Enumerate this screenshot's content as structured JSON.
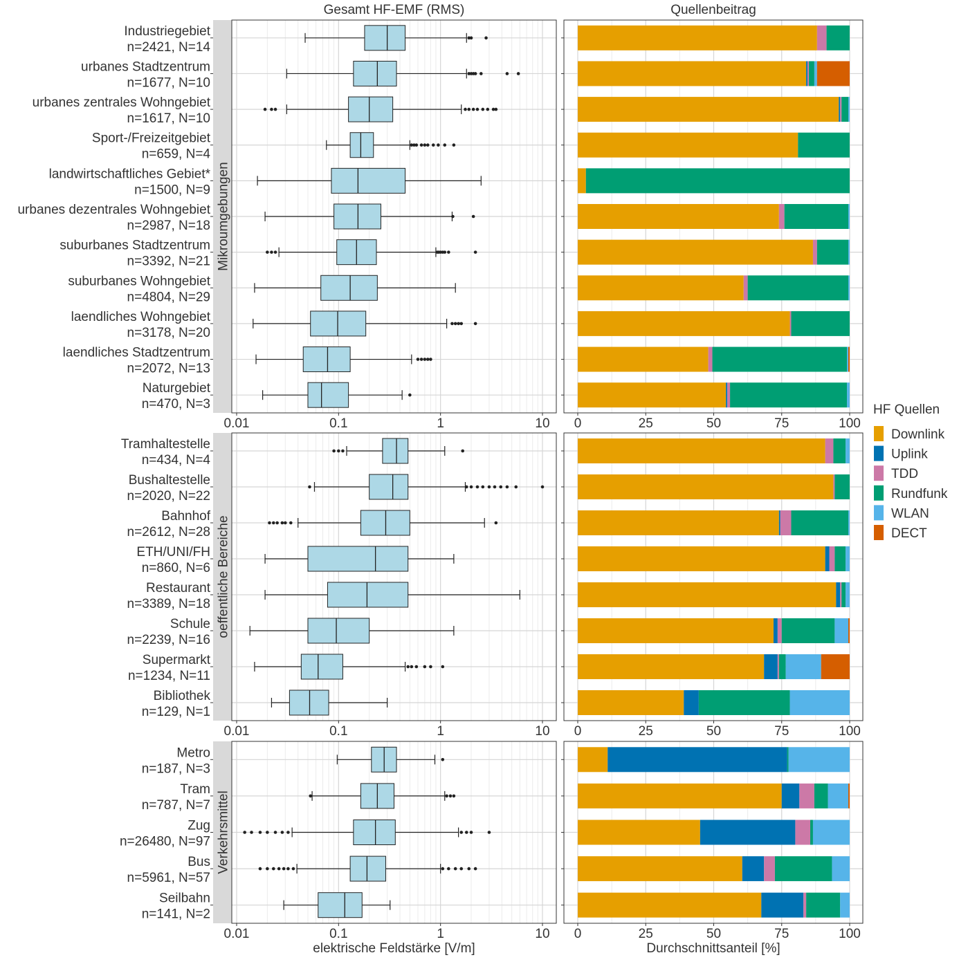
{
  "chart_data": {
    "type": "boxplot+stacked-bar",
    "left_title": "Gesamt HF-EMF (RMS)",
    "right_title": "Quellenbeitrag",
    "left_xlabel": "elektrische Feldstärke [V/m]",
    "right_xlabel": "Durchschnittsanteil [%]",
    "left_scale": "log10",
    "left_xlim": [
      0.01,
      12
    ],
    "left_ticks": [
      "0.01",
      "0.1",
      "1",
      "10"
    ],
    "right_xlim": [
      0,
      100
    ],
    "right_ticks": [
      "0",
      "25",
      "50",
      "75",
      "100"
    ],
    "grid": true,
    "legend": {
      "title": "HF Quellen",
      "placement": "right",
      "items": [
        {
          "name": "Downlink",
          "color": "#E69F00"
        },
        {
          "name": "Uplink",
          "color": "#0072B2"
        },
        {
          "name": "TDD",
          "color": "#CC79A7"
        },
        {
          "name": "Rundfunk",
          "color": "#009E73"
        },
        {
          "name": "WLAN",
          "color": "#56B4E9"
        },
        {
          "name": "DECT",
          "color": "#D55E00"
        }
      ]
    },
    "box_fill": "#ADD8E6",
    "panels": [
      {
        "strip": "Mikroumgebungen",
        "rows": [
          {
            "name": "Industriegebiet",
            "n": "n=2421, N=14",
            "box": {
              "lw": 0.047,
              "q1": 0.18,
              "med": 0.3,
              "q3": 0.45,
              "uw": 1.8
            },
            "outliers": [
              1.9,
              2.0,
              2.8
            ],
            "shares": [
              88,
              0,
              3.5,
              8.5,
              0,
              0
            ]
          },
          {
            "name": "urbanes Stadtzentrum",
            "n": "n=1677, N=10",
            "box": {
              "lw": 0.031,
              "q1": 0.14,
              "med": 0.24,
              "q3": 0.37,
              "uw": 1.8
            },
            "outliers": [
              1.9,
              2.0,
              2.1,
              2.2,
              2.5,
              4.5,
              5.8
            ],
            "shares": [
              84,
              0.5,
              0.5,
              2,
              1,
              12
            ]
          },
          {
            "name": "urbanes zentrales Wohngebiet",
            "n": "n=1617, N=10",
            "box": {
              "lw": 0.031,
              "q1": 0.125,
              "med": 0.2,
              "q3": 0.34,
              "uw": 1.6
            },
            "outliers": [
              0.019,
              0.022,
              0.024,
              1.75,
              1.9,
              2.1,
              2.3,
              2.6,
              2.9,
              3.3,
              3.5
            ],
            "shares": [
              96,
              0.5,
              0.5,
              2.5,
              0.5,
              0
            ]
          },
          {
            "name": "Sport-/Freizeitgebiet",
            "n": "n=659, N=4",
            "box": {
              "lw": 0.076,
              "q1": 0.13,
              "med": 0.165,
              "q3": 0.22,
              "uw": 0.5
            },
            "outliers": [
              0.52,
              0.55,
              0.58,
              0.65,
              0.7,
              0.75,
              0.85,
              0.95,
              1.1,
              1.35
            ],
            "shares": [
              81,
              0,
              0,
              19,
              0,
              0
            ]
          },
          {
            "name": "landwirtschaftliches Gebiet*",
            "n": "n=1500, N=9",
            "box": {
              "lw": 0.016,
              "q1": 0.085,
              "med": 0.155,
              "q3": 0.45,
              "uw": 2.5
            },
            "outliers": [],
            "shares": [
              3,
              0,
              0,
              97,
              0,
              0
            ]
          },
          {
            "name": "urbanes dezentrales Wohngebiet",
            "n": "n=2987, N=18",
            "box": {
              "lw": 0.019,
              "q1": 0.09,
              "med": 0.155,
              "q3": 0.26,
              "uw": 1.3
            },
            "outliers": [
              1.32,
              2.1
            ],
            "shares": [
              74,
              0,
              2,
              23.5,
              0.5,
              0
            ]
          },
          {
            "name": "suburbanes Stadtzentrum",
            "n": "n=3392, N=21",
            "box": {
              "lw": 0.026,
              "q1": 0.096,
              "med": 0.15,
              "q3": 0.235,
              "uw": 0.9
            },
            "outliers": [
              0.02,
              0.022,
              0.024,
              0.93,
              0.96,
              1.0,
              1.05,
              1.1,
              1.2,
              2.2
            ],
            "shares": [
              86.5,
              0,
              1.5,
              11.5,
              0.5,
              0
            ]
          },
          {
            "name": "suburbanes Wohngebiet",
            "n": "n=4804, N=29",
            "box": {
              "lw": 0.015,
              "q1": 0.067,
              "med": 0.13,
              "q3": 0.24,
              "uw": 1.4
            },
            "outliers": [],
            "shares": [
              61,
              0,
              1.5,
              37,
              0.5,
              0
            ]
          },
          {
            "name": "laendliches Wohngebiet",
            "n": "n=3178, N=20",
            "box": {
              "lw": 0.0145,
              "q1": 0.053,
              "med": 0.098,
              "q3": 0.185,
              "uw": 1.15
            },
            "outliers": [
              1.3,
              1.4,
              1.5,
              1.6,
              2.2
            ],
            "shares": [
              78,
              0,
              0.5,
              21.5,
              0,
              0
            ]
          },
          {
            "name": "laendliches Stadtzentrum",
            "n": "n=2072, N=13",
            "box": {
              "lw": 0.0155,
              "q1": 0.045,
              "med": 0.078,
              "q3": 0.13,
              "uw": 0.52
            },
            "outliers": [
              0.6,
              0.65,
              0.7,
              0.75,
              0.8
            ],
            "shares": [
              48,
              0,
              1.5,
              49.5,
              0.5,
              0.5
            ]
          },
          {
            "name": "Naturgebiet",
            "n": "n=470, N=3",
            "box": {
              "lw": 0.018,
              "q1": 0.05,
              "med": 0.068,
              "q3": 0.125,
              "uw": 0.42
            },
            "outliers": [
              0.5
            ],
            "shares": [
              54.5,
              0.5,
              1,
              43,
              1,
              0
            ]
          }
        ]
      },
      {
        "strip": "oeffentliche Bereiche",
        "rows": [
          {
            "name": "Tramhaltestelle",
            "n": "n=434, N=4",
            "box": {
              "lw": 0.12,
              "q1": 0.27,
              "med": 0.37,
              "q3": 0.48,
              "uw": 1.1
            },
            "outliers": [
              0.09,
              0.1,
              0.11,
              1.65
            ],
            "shares": [
              91,
              0,
              3,
              4.5,
              1.5,
              0
            ]
          },
          {
            "name": "Bushaltestelle",
            "n": "n=2020, N=22",
            "box": {
              "lw": 0.058,
              "q1": 0.2,
              "med": 0.34,
              "q3": 0.48,
              "uw": 1.75
            },
            "outliers": [
              0.052,
              1.8,
              2.0,
              2.3,
              2.6,
              3.0,
              3.4,
              3.9,
              4.5,
              5.5,
              10.0
            ],
            "shares": [
              94,
              0,
              0.5,
              5.5,
              0,
              0
            ]
          },
          {
            "name": "Bahnhof",
            "n": "n=2612, N=28",
            "box": {
              "lw": 0.04,
              "q1": 0.165,
              "med": 0.29,
              "q3": 0.5,
              "uw": 2.7
            },
            "outliers": [
              0.021,
              0.023,
              0.025,
              0.028,
              0.03,
              0.034,
              3.5
            ],
            "shares": [
              74,
              0.5,
              4,
              21,
              0.5,
              0
            ]
          },
          {
            "name": "ETH/UNI/FH",
            "n": "n=860, N=6",
            "box": {
              "lw": 0.019,
              "q1": 0.05,
              "med": 0.23,
              "q3": 0.48,
              "uw": 1.35
            },
            "outliers": [],
            "shares": [
              91,
              1.5,
              2,
              4,
              1.5,
              0
            ]
          },
          {
            "name": "Restaurant",
            "n": "n=3389, N=18",
            "box": {
              "lw": 0.019,
              "q1": 0.078,
              "med": 0.19,
              "q3": 0.48,
              "uw": 6.0
            },
            "outliers": [],
            "shares": [
              95,
              1.5,
              0.5,
              1.5,
              1.5,
              0
            ]
          },
          {
            "name": "Schule",
            "n": "n=2239, N=16",
            "box": {
              "lw": 0.0135,
              "q1": 0.05,
              "med": 0.095,
              "q3": 0.2,
              "uw": 1.35
            },
            "outliers": [],
            "shares": [
              72,
              1.5,
              1.5,
              19.5,
              5,
              0.5
            ]
          },
          {
            "name": "Supermarkt",
            "n": "n=1234, N=11",
            "box": {
              "lw": 0.015,
              "q1": 0.043,
              "med": 0.063,
              "q3": 0.11,
              "uw": 0.45
            },
            "outliers": [
              0.48,
              0.52,
              0.58,
              0.7,
              0.8,
              1.05
            ],
            "shares": [
              68.5,
              5,
              0.5,
              2.5,
              13,
              10.5
            ]
          },
          {
            "name": "Bibliothek",
            "n": "n=129, N=1",
            "box": {
              "lw": 0.022,
              "q1": 0.033,
              "med": 0.052,
              "q3": 0.08,
              "uw": 0.3
            },
            "outliers": [],
            "shares": [
              39,
              5.5,
              0,
              33.5,
              22,
              0
            ]
          }
        ]
      },
      {
        "strip": "Verkehrsmittel",
        "rows": [
          {
            "name": "Metro",
            "n": "n=187, N=3",
            "box": {
              "lw": 0.097,
              "q1": 0.21,
              "med": 0.28,
              "q3": 0.37,
              "uw": 0.88
            },
            "outliers": [
              1.05
            ],
            "shares": [
              11,
              66,
              0,
              0.5,
              22.5,
              0
            ]
          },
          {
            "name": "Tram",
            "n": "n=787, N=7",
            "box": {
              "lw": 0.055,
              "q1": 0.165,
              "med": 0.24,
              "q3": 0.35,
              "uw": 1.1
            },
            "outliers": [
              0.053,
              1.15,
              1.25,
              1.35
            ],
            "shares": [
              75,
              6.5,
              5.5,
              5,
              7.5,
              0.5
            ]
          },
          {
            "name": "Zug",
            "n": "n=26480, N=97",
            "box": {
              "lw": 0.035,
              "q1": 0.14,
              "med": 0.23,
              "q3": 0.36,
              "uw": 1.5
            },
            "outliers": [
              0.012,
              0.014,
              0.017,
              0.02,
              0.024,
              0.028,
              0.032,
              1.6,
              1.8,
              2.0,
              3.0
            ],
            "shares": [
              45,
              35,
              5.5,
              1,
              13.5,
              0
            ]
          },
          {
            "name": "Bus",
            "n": "n=5961, N=57",
            "box": {
              "lw": 0.039,
              "q1": 0.13,
              "med": 0.19,
              "q3": 0.29,
              "uw": 1.0
            },
            "outliers": [
              0.017,
              0.02,
              0.023,
              0.026,
              0.029,
              0.032,
              0.036,
              1.05,
              1.2,
              1.4,
              1.6,
              1.9,
              2.2
            ],
            "shares": [
              60.5,
              8,
              4,
              21,
              6.5,
              0
            ]
          },
          {
            "name": "Seilbahn",
            "n": "n=141, N=2",
            "box": {
              "lw": 0.029,
              "q1": 0.063,
              "med": 0.115,
              "q3": 0.17,
              "uw": 0.32
            },
            "outliers": [],
            "shares": [
              67.5,
              15.5,
              1,
              12.5,
              3.5,
              0
            ]
          }
        ]
      }
    ]
  }
}
